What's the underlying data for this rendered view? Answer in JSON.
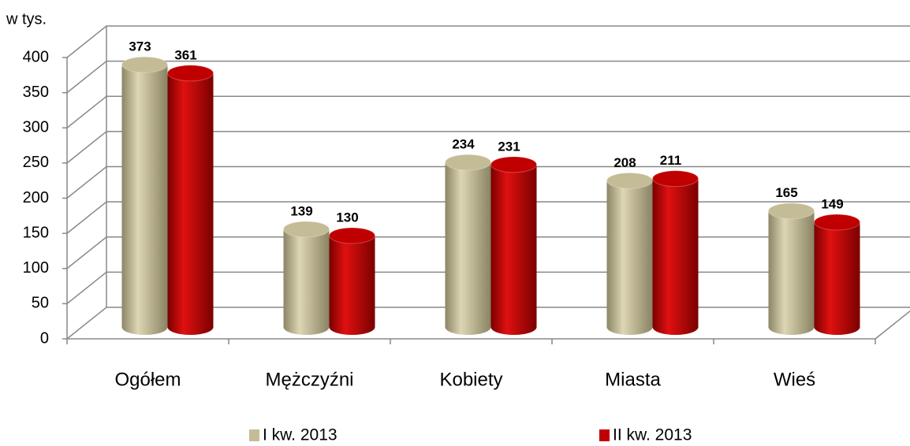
{
  "chart_data": {
    "type": "bar",
    "y_axis_label": "w tys.",
    "categories": [
      "Ogółem",
      "Mężczyźni",
      "Kobiety",
      "Miasta",
      "Wieś"
    ],
    "series": [
      {
        "name": "I kw. 2013",
        "color": "#c4bc96",
        "values": [
          373,
          139,
          234,
          208,
          165
        ]
      },
      {
        "name": "II kw. 2013",
        "color": "#c00000",
        "values": [
          361,
          130,
          231,
          211,
          149
        ]
      }
    ],
    "ylim": [
      0,
      400
    ],
    "yticks": [
      0,
      50,
      100,
      150,
      200,
      250,
      300,
      350,
      400
    ],
    "grid": true,
    "legend": "bottom"
  }
}
